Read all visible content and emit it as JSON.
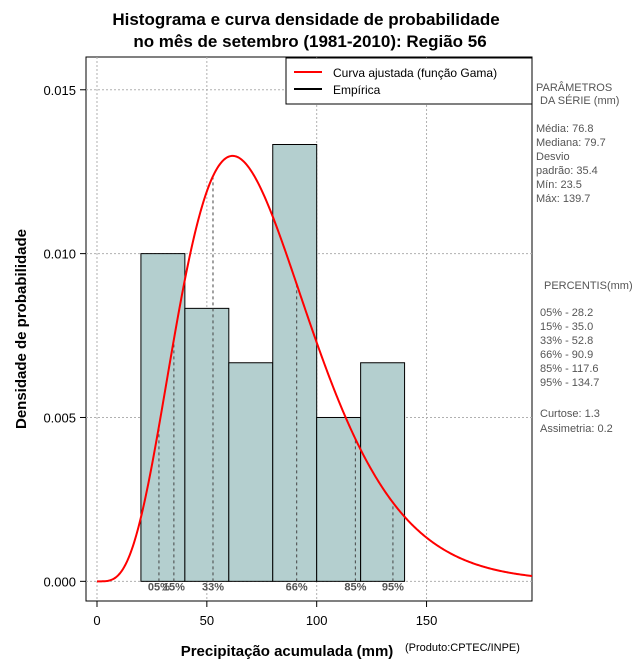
{
  "chart_data": {
    "type": "bar",
    "title_line1": "Histograma e curva densidade de probabilidade",
    "title_line2": "no mês de setembro (1981-2010): Região 56",
    "xlabel": "Precipitação acumulada (mm)",
    "ylabel": "Densidade de probabilidade",
    "credit": "(Produto:CPTEC/INPE)",
    "xlim": [
      -5,
      198
    ],
    "ylim": [
      -0.0006,
      0.016
    ],
    "x_ticks": [
      0,
      50,
      100,
      150
    ],
    "y_ticks": [
      0.0,
      0.005,
      0.01,
      0.015
    ],
    "y_tick_labels": [
      "0.000",
      "0.005",
      "0.010",
      "0.015"
    ],
    "bins": [
      {
        "x0": 20,
        "x1": 40,
        "density": 0.01
      },
      {
        "x0": 40,
        "x1": 60,
        "density": 0.00833
      },
      {
        "x0": 60,
        "x1": 80,
        "density": 0.00667
      },
      {
        "x0": 80,
        "x1": 100,
        "density": 0.01333
      },
      {
        "x0": 100,
        "x1": 120,
        "density": 0.005
      },
      {
        "x0": 120,
        "x1": 140,
        "density": 0.00667
      }
    ],
    "gamma_fit": {
      "shape": 5.2,
      "scale": 14.7,
      "x_max": 198
    },
    "percentile_lines": [
      {
        "label": "05%",
        "x": 28.2
      },
      {
        "label": "15%",
        "x": 35.0
      },
      {
        "label": "33%",
        "x": 52.8
      },
      {
        "label": "66%",
        "x": 90.9
      },
      {
        "label": "85%",
        "x": 117.6
      },
      {
        "label": "95%",
        "x": 134.7
      }
    ],
    "legend": [
      {
        "label": "Curva ajustada (função Gama)",
        "color": "#ff0000"
      },
      {
        "label": "Empírica",
        "color": "#000000"
      }
    ],
    "colors": {
      "bar_fill": "#b4cfcf",
      "curve": "#ff0000",
      "grid": "#b0b0b0"
    }
  },
  "stats": {
    "params_title1": "PARÂMETROS",
    "params_title2": "DA SÉRIE (mm)",
    "lines": [
      "Média:  76.8",
      "Mediana:  79.7",
      "Desvio",
      "padrão:  35.4",
      "Mín:  23.5",
      "Máx:  139.7"
    ],
    "percentis_title": "PERCENTIS(mm)",
    "percentis": [
      "05% -  28.2",
      "15% -  35.0",
      "33% -  52.8",
      "66% -  90.9",
      "85% -  117.6",
      "95% -  134.7"
    ],
    "curtose": "Curtose:  1.3",
    "assimetria": "Assimetria:  0.2"
  }
}
